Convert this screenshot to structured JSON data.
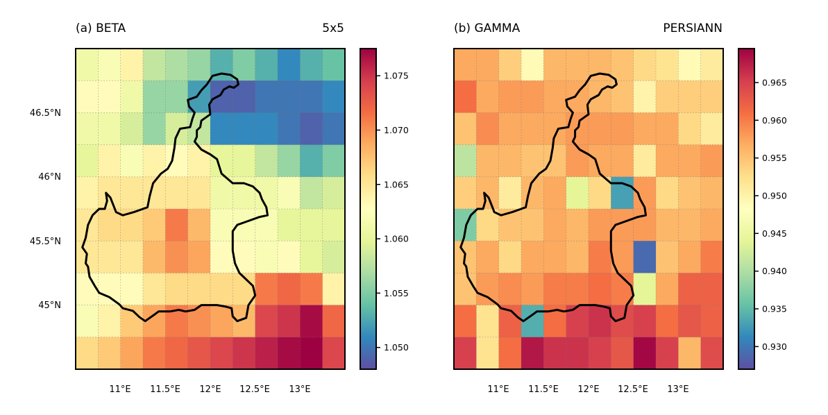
{
  "panels": [
    {
      "id": "a",
      "title_left": "(a) BETA",
      "title_right": "5x5",
      "x_ticks": [
        "11°E",
        "11.5°E",
        "12°E",
        "12.5°E",
        "13°E"
      ],
      "y_ticks": [
        "46.5°N",
        "46°N",
        "45.5°N",
        "45°N"
      ],
      "colorbar_ticks": [
        "1.075",
        "1.070",
        "1.065",
        "1.060",
        "1.055",
        "1.050"
      ],
      "colorbar_range": [
        1.048,
        1.0775
      ],
      "grid": [
        [
          1.061,
          1.062,
          1.064,
          1.058,
          1.057,
          1.056,
          1.053,
          1.055,
          1.053,
          1.051,
          1.053,
          1.054
        ],
        [
          1.063,
          1.063,
          1.061,
          1.056,
          1.056,
          1.052,
          1.049,
          1.049,
          1.05,
          1.05,
          1.05,
          1.051
        ],
        [
          1.061,
          1.061,
          1.059,
          1.056,
          1.059,
          1.058,
          1.051,
          1.051,
          1.051,
          1.05,
          1.049,
          1.05
        ],
        [
          1.06,
          1.064,
          1.062,
          1.064,
          1.063,
          1.064,
          1.06,
          1.06,
          1.058,
          1.056,
          1.053,
          1.055
        ],
        [
          1.064,
          1.065,
          1.065,
          1.065,
          1.065,
          1.065,
          1.061,
          1.061,
          1.061,
          1.062,
          1.058,
          1.059
        ],
        [
          1.065,
          1.066,
          1.066,
          1.067,
          1.071,
          1.068,
          1.062,
          1.062,
          1.062,
          1.06,
          1.06,
          1.06
        ],
        [
          1.065,
          1.065,
          1.065,
          1.068,
          1.07,
          1.069,
          1.063,
          1.063,
          1.062,
          1.063,
          1.06,
          1.059
        ],
        [
          1.063,
          1.063,
          1.063,
          1.065,
          1.066,
          1.066,
          1.066,
          1.066,
          1.071,
          1.072,
          1.071,
          1.064
        ],
        [
          1.062,
          1.064,
          1.067,
          1.069,
          1.071,
          1.07,
          1.069,
          1.068,
          1.074,
          1.075,
          1.077,
          1.072
        ],
        [
          1.066,
          1.067,
          1.069,
          1.071,
          1.072,
          1.073,
          1.074,
          1.075,
          1.076,
          1.077,
          1.078,
          1.074
        ]
      ]
    },
    {
      "id": "b",
      "title_left": "(b) GAMMA",
      "title_right": "PERSIANN",
      "x_ticks": [
        "11°E",
        "11.5°E",
        "12°E",
        "12.5°E",
        "13°E"
      ],
      "y_ticks": [],
      "colorbar_ticks": [
        "0.965",
        "0.960",
        "0.955",
        "0.950",
        "0.945",
        "0.940",
        "0.935",
        "0.930"
      ],
      "colorbar_range": [
        0.927,
        0.9695
      ],
      "grid": [
        [
          0.957,
          0.957,
          0.954,
          0.949,
          0.956,
          0.956,
          0.956,
          0.955,
          0.953,
          0.952,
          0.949,
          0.951
        ],
        [
          0.961,
          0.957,
          0.958,
          0.958,
          0.957,
          0.957,
          0.956,
          0.955,
          0.95,
          0.954,
          0.954,
          0.954
        ],
        [
          0.955,
          0.959,
          0.957,
          0.957,
          0.957,
          0.958,
          0.958,
          0.958,
          0.957,
          0.957,
          0.953,
          0.951
        ],
        [
          0.941,
          0.956,
          0.956,
          0.955,
          0.955,
          0.958,
          0.957,
          0.957,
          0.951,
          0.957,
          0.957,
          0.958
        ],
        [
          0.954,
          0.956,
          0.951,
          0.956,
          0.957,
          0.944,
          0.953,
          0.933,
          0.958,
          0.953,
          0.955,
          0.956
        ],
        [
          0.937,
          0.953,
          0.955,
          0.955,
          0.957,
          0.956,
          0.958,
          0.958,
          0.958,
          0.956,
          0.956,
          0.957
        ],
        [
          0.955,
          0.957,
          0.953,
          0.957,
          0.957,
          0.956,
          0.96,
          0.958,
          0.929,
          0.955,
          0.957,
          0.96
        ],
        [
          0.955,
          0.958,
          0.959,
          0.958,
          0.96,
          0.96,
          0.961,
          0.96,
          0.944,
          0.957,
          0.962,
          0.962
        ],
        [
          0.961,
          0.952,
          0.962,
          0.934,
          0.961,
          0.965,
          0.966,
          0.964,
          0.965,
          0.961,
          0.963,
          0.962
        ],
        [
          0.965,
          0.952,
          0.961,
          0.968,
          0.966,
          0.966,
          0.965,
          0.963,
          0.969,
          0.965,
          0.956,
          0.964
        ]
      ]
    }
  ]
}
